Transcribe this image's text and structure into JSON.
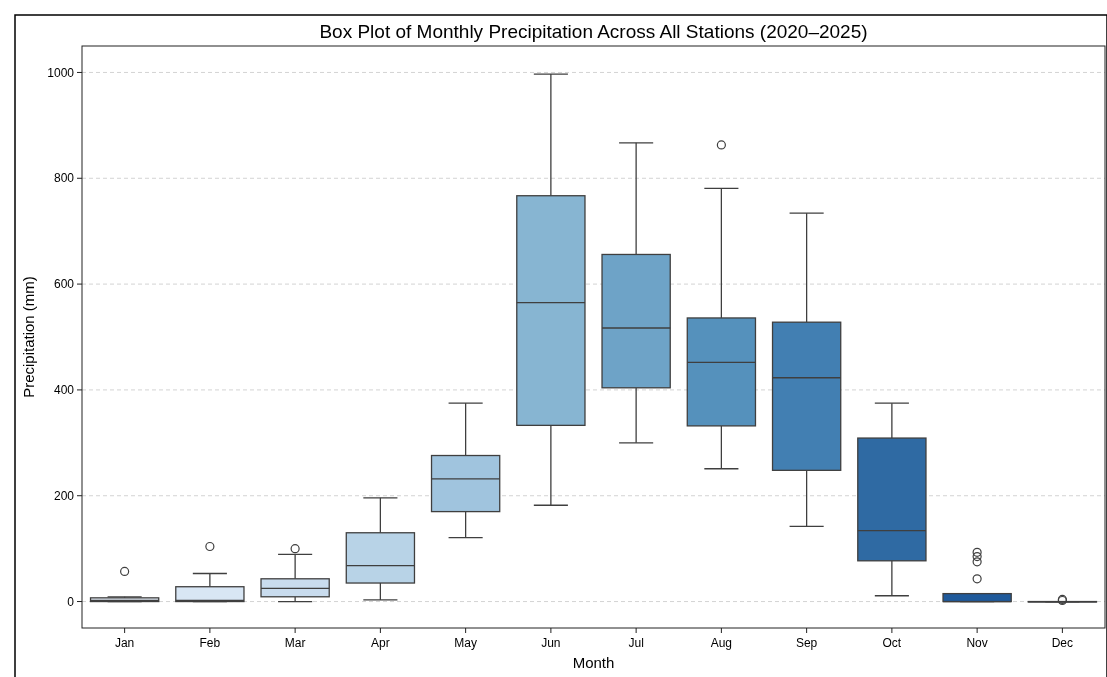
{
  "chart_data": {
    "type": "box",
    "title": "Box Plot of Monthly Precipitation Across All Stations (2020–2025)",
    "xlabel": "Month",
    "ylabel": "Precipitation (mm)",
    "categories": [
      "Jan",
      "Feb",
      "Mar",
      "Apr",
      "May",
      "Jun",
      "Jul",
      "Aug",
      "Sep",
      "Oct",
      "Nov",
      "Dec"
    ],
    "colors": [
      "#e1e9f3",
      "#d8e6f4",
      "#c9dcee",
      "#b8d3e7",
      "#a0c4de",
      "#87b5d2",
      "#6ea3c7",
      "#5591bc",
      "#427fb2",
      "#2f6aa3",
      "#1f5a9b",
      "#174a8a"
    ],
    "boxes": [
      {
        "low": 0,
        "q1": 0,
        "median": 2,
        "q3": 7,
        "high": 9,
        "outliers": [
          57
        ]
      },
      {
        "low": 0,
        "q1": 0,
        "median": 2,
        "q3": 28,
        "high": 53,
        "outliers": [
          104
        ]
      },
      {
        "low": 0,
        "q1": 9,
        "median": 25,
        "q3": 43,
        "high": 89,
        "outliers": [
          100
        ]
      },
      {
        "low": 3,
        "q1": 35,
        "median": 68,
        "q3": 130,
        "high": 196
      },
      {
        "low": 121,
        "q1": 170,
        "median": 232,
        "q3": 276,
        "high": 375
      },
      {
        "low": 182,
        "q1": 333,
        "median": 565,
        "q3": 767,
        "high": 997
      },
      {
        "low": 300,
        "q1": 404,
        "median": 517,
        "q3": 656,
        "high": 867
      },
      {
        "low": 251,
        "q1": 332,
        "median": 452,
        "q3": 536,
        "high": 781,
        "outliers": [
          863
        ]
      },
      {
        "low": 142,
        "q1": 248,
        "median": 423,
        "q3": 528,
        "high": 734
      },
      {
        "low": 11,
        "q1": 77,
        "median": 134,
        "q3": 309,
        "high": 375
      },
      {
        "low": 0,
        "q1": 0,
        "median": 0,
        "q3": 15,
        "high": 15,
        "outliers": [
          43,
          75,
          85,
          93
        ]
      },
      {
        "low": 0,
        "q1": 0,
        "median": 0,
        "q3": 0,
        "high": 0,
        "outliers": [
          2,
          4
        ]
      }
    ],
    "ylim": [
      -50,
      1050
    ],
    "yticks": [
      0,
      200,
      400,
      600,
      800,
      1000
    ],
    "grid": "y"
  }
}
